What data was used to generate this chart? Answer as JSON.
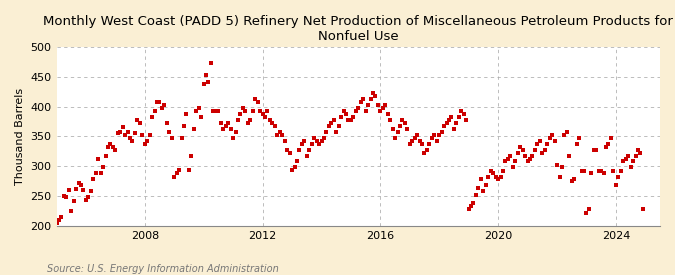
{
  "title": "Monthly West Coast (PADD 5) Refinery Net Production of Miscellaneous Petroleum Products for\nNonfuel Use",
  "ylabel": "Thousand Barrels",
  "source": "Source: U.S. Energy Information Administration",
  "background_color": "#faefd4",
  "plot_bg_color": "#ffffff",
  "dot_color": "#cc0000",
  "dot_size": 7,
  "ylim": [
    200,
    500
  ],
  "yticks": [
    200,
    250,
    300,
    350,
    400,
    450,
    500
  ],
  "grid_color": "#aaaaaa",
  "title_fontsize": 9.5,
  "tick_fontsize": 8,
  "ylabel_fontsize": 8,
  "values": [
    205,
    210,
    215,
    250,
    248,
    260,
    225,
    242,
    262,
    272,
    268,
    260,
    243,
    248,
    258,
    278,
    288,
    312,
    288,
    298,
    318,
    332,
    338,
    332,
    328,
    355,
    358,
    365,
    353,
    358,
    348,
    343,
    355,
    378,
    373,
    352,
    338,
    342,
    352,
    382,
    393,
    407,
    408,
    397,
    403,
    372,
    358,
    348,
    282,
    288,
    293,
    348,
    368,
    388,
    293,
    318,
    362,
    393,
    398,
    382,
    438,
    453,
    442,
    473,
    393,
    393,
    393,
    372,
    363,
    368,
    372,
    363,
    348,
    358,
    378,
    388,
    398,
    393,
    373,
    378,
    393,
    413,
    408,
    393,
    388,
    382,
    393,
    378,
    373,
    368,
    352,
    358,
    352,
    342,
    328,
    323,
    293,
    298,
    308,
    328,
    338,
    342,
    318,
    328,
    338,
    348,
    342,
    338,
    342,
    348,
    358,
    368,
    373,
    378,
    358,
    368,
    382,
    393,
    388,
    378,
    378,
    382,
    393,
    398,
    408,
    412,
    393,
    403,
    413,
    423,
    418,
    403,
    393,
    398,
    403,
    388,
    378,
    363,
    348,
    358,
    368,
    378,
    373,
    363,
    338,
    342,
    348,
    352,
    342,
    338,
    322,
    328,
    338,
    348,
    352,
    342,
    352,
    358,
    368,
    373,
    378,
    382,
    363,
    373,
    382,
    393,
    388,
    378,
    228,
    233,
    238,
    252,
    263,
    278,
    258,
    268,
    282,
    292,
    288,
    282,
    278,
    282,
    292,
    308,
    312,
    318,
    298,
    308,
    322,
    332,
    328,
    318,
    308,
    312,
    318,
    328,
    338,
    342,
    322,
    328,
    338,
    348,
    352,
    342,
    302,
    282,
    298,
    352,
    358,
    318,
    275,
    278,
    338,
    348,
    292,
    292,
    222,
    228,
    288,
    328,
    328,
    292,
    292,
    288,
    332,
    338,
    348,
    292,
    268,
    282,
    292,
    308,
    312,
    318,
    298,
    308,
    318,
    328,
    322,
    228
  ],
  "start_year": 2005,
  "start_month": 1,
  "xtick_years": [
    2008,
    2012,
    2016,
    2020,
    2024
  ]
}
